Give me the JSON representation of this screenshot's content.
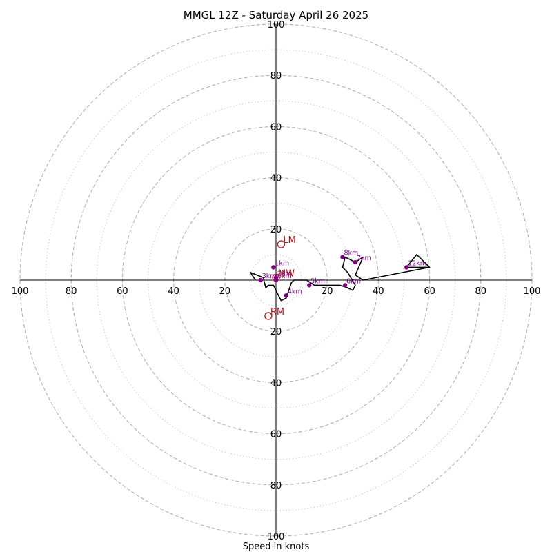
{
  "chart_data": {
    "type": "hodograph",
    "title": "MMGL 12Z - Saturday April 26 2025",
    "xlabel": "Speed in knots",
    "ring_max": 100,
    "major_rings": [
      20,
      40,
      60,
      80,
      100
    ],
    "minor_rings": [
      10,
      30,
      50,
      70,
      90
    ],
    "x_tick_labels": [
      "100",
      "80",
      "60",
      "40",
      "20",
      "20",
      "40",
      "60",
      "80",
      "100"
    ],
    "y_tick_labels": [
      "100",
      "80",
      "60",
      "40",
      "20",
      "20",
      "40",
      "60",
      "80",
      "100"
    ],
    "grid": true,
    "colors": {
      "trace": "#000000",
      "points": "#800080",
      "labels": "#800080",
      "motion": "#b22222",
      "grid_major": "#b0b0b0",
      "grid_minor": "#c8c8c8"
    },
    "trace": [
      [
        -8,
        0
      ],
      [
        -10,
        3
      ],
      [
        -5,
        1
      ],
      [
        -4,
        -3
      ],
      [
        -3,
        -2
      ],
      [
        -1,
        -2
      ],
      [
        1,
        -6
      ],
      [
        2,
        -8
      ],
      [
        4,
        -7
      ],
      [
        6,
        -1
      ],
      [
        7,
        0
      ],
      [
        12,
        0
      ],
      [
        15,
        -2
      ],
      [
        20,
        -2
      ],
      [
        25,
        -2
      ],
      [
        28,
        -3
      ],
      [
        30,
        -4
      ],
      [
        31,
        -2
      ],
      [
        28,
        3
      ],
      [
        26,
        5
      ],
      [
        27,
        9
      ],
      [
        31,
        7
      ],
      [
        34,
        9
      ],
      [
        31,
        2
      ],
      [
        34,
        0
      ],
      [
        60,
        5
      ],
      [
        55,
        10
      ],
      [
        51,
        5
      ],
      [
        60,
        5
      ]
    ],
    "points": [
      {
        "label": "0km",
        "u": 0,
        "v": 0
      },
      {
        "label": "1km",
        "u": -1,
        "v": 5
      },
      {
        "label": "2km",
        "u": 0,
        "v": 1
      },
      {
        "label": "3km",
        "u": -6,
        "v": 0
      },
      {
        "label": "4km",
        "u": 4,
        "v": -6
      },
      {
        "label": "5km",
        "u": 13,
        "v": -2
      },
      {
        "label": "6km",
        "u": 27,
        "v": -2
      },
      {
        "label": "7km",
        "u": 31,
        "v": 7
      },
      {
        "label": "8km",
        "u": 26,
        "v": 9
      },
      {
        "label": "12km",
        "u": 51,
        "v": 5
      }
    ],
    "motion_markers": [
      {
        "label": "LM",
        "u": 2,
        "v": 14
      },
      {
        "label": "RM",
        "u": -3,
        "v": -14
      },
      {
        "label": "MW",
        "u": 0,
        "v": 1
      }
    ]
  }
}
